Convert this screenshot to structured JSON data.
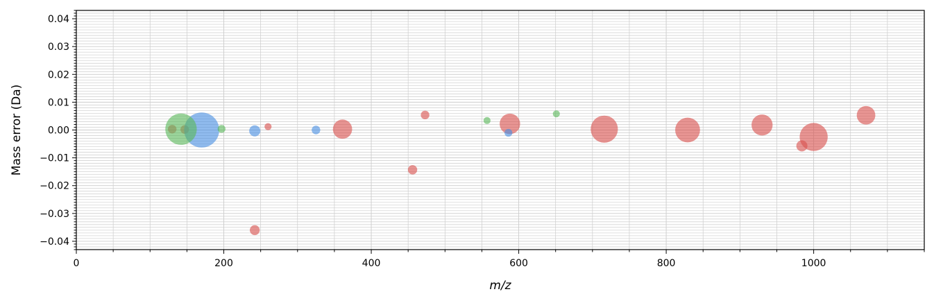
{
  "chart_data": {
    "type": "scatter",
    "xlabel": "m/z",
    "ylabel": "Mass error (Da)",
    "xlim": [
      0,
      1150
    ],
    "ylim": [
      -0.043,
      0.043
    ],
    "xticks": [
      "0",
      "200",
      "400",
      "600",
      "800",
      "1000"
    ],
    "yticks": [
      "−0.04",
      "−0.03",
      "−0.02",
      "−0.01",
      "0.00",
      "0.01",
      "0.02",
      "0.03",
      "0.04"
    ],
    "grid": true,
    "colors": {
      "red": "#d9534f",
      "blue": "#4a90e2",
      "green": "#5cb85c"
    },
    "series": [
      {
        "color": "red",
        "points": [
          {
            "x": 130,
            "y": 0.0003,
            "size": 0.3
          },
          {
            "x": 147,
            "y": 0.0002,
            "size": 0.3
          },
          {
            "x": 242,
            "y": -0.036,
            "size": 0.4
          },
          {
            "x": 260,
            "y": 0.0012,
            "size": 0.2
          },
          {
            "x": 361,
            "y": 0.0003,
            "size": 1.5
          },
          {
            "x": 456,
            "y": -0.0143,
            "size": 0.35
          },
          {
            "x": 473,
            "y": 0.0054,
            "size": 0.3
          },
          {
            "x": 588,
            "y": 0.0022,
            "size": 1.7
          },
          {
            "x": 716,
            "y": 0.0003,
            "size": 3.0
          },
          {
            "x": 829,
            "y": 0.0,
            "size": 2.5
          },
          {
            "x": 930,
            "y": 0.0018,
            "size": 1.8
          },
          {
            "x": 984,
            "y": -0.0057,
            "size": 0.5
          },
          {
            "x": 1000,
            "y": -0.0025,
            "size": 3.2
          },
          {
            "x": 1071,
            "y": 0.0053,
            "size": 1.4
          }
        ]
      },
      {
        "color": "blue",
        "points": [
          {
            "x": 170,
            "y": 0.0,
            "size": 5.0
          },
          {
            "x": 242,
            "y": -0.0003,
            "size": 0.5
          },
          {
            "x": 325,
            "y": 0.0,
            "size": 0.3
          },
          {
            "x": 586,
            "y": -0.001,
            "size": 0.25
          }
        ]
      },
      {
        "color": "green",
        "points": [
          {
            "x": 142,
            "y": 0.0003,
            "size": 4.0
          },
          {
            "x": 197,
            "y": 0.0004,
            "size": 0.25
          },
          {
            "x": 557,
            "y": 0.0034,
            "size": 0.2
          },
          {
            "x": 651,
            "y": 0.0058,
            "size": 0.2
          }
        ]
      }
    ]
  }
}
